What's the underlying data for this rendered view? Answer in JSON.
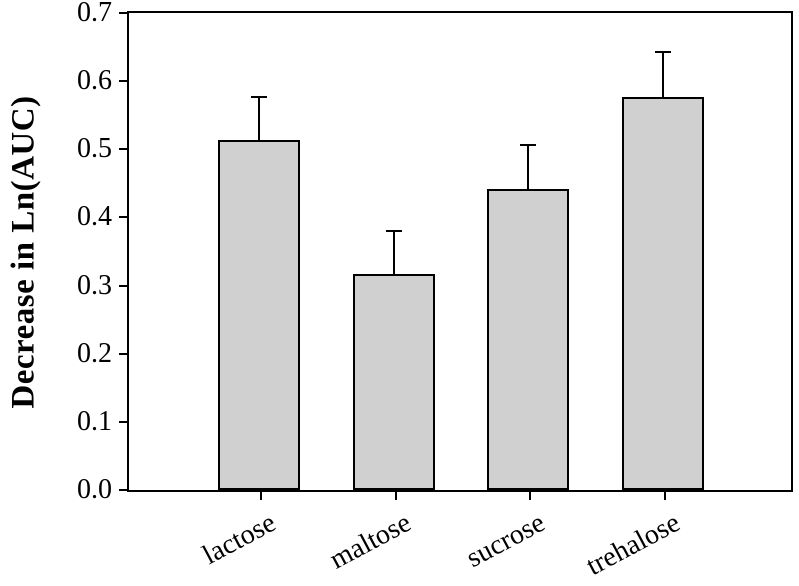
{
  "figure": {
    "background": "#ffffff",
    "axis_color": "#000000",
    "text_color": "#000000"
  },
  "chart_data": {
    "type": "bar",
    "categories": [
      "lactose",
      "maltose",
      "sucrose",
      "trehalose"
    ],
    "values": [
      0.513,
      0.317,
      0.442,
      0.576
    ],
    "errors_plus": [
      0.063,
      0.063,
      0.065,
      0.066
    ],
    "error_bars": "upper-only-with-caps",
    "title": "",
    "xlabel": "",
    "ylabel": "Decrease in Ln(AUC)",
    "ylim": [
      0.0,
      0.7
    ],
    "ytick_step": 0.1,
    "ytick_labels": [
      "0.0",
      "0.1",
      "0.2",
      "0.3",
      "0.4",
      "0.5",
      "0.6",
      "0.7"
    ],
    "grid": false,
    "legend": null,
    "bar_fill": "#d0d0d0",
    "bar_edge_color": "#000000"
  }
}
